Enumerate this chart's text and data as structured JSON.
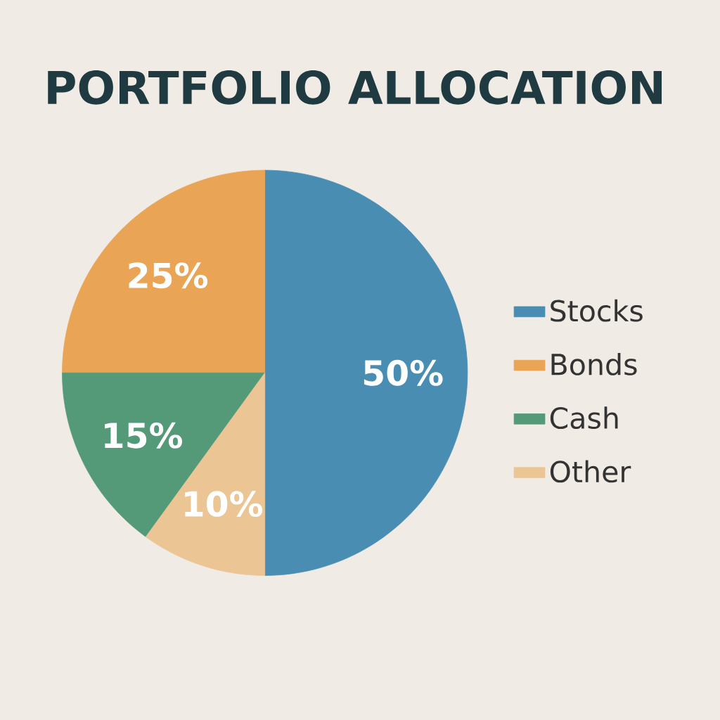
{
  "chart_data": {
    "type": "pie",
    "title": "PORTFOLIO ALLOCATION",
    "categories": [
      "Stocks",
      "Bonds",
      "Cash",
      "Other"
    ],
    "values": [
      50,
      25,
      15,
      10
    ],
    "colors": [
      "#4a8db3",
      "#e9a555",
      "#559a78",
      "#ecc594"
    ],
    "value_labels": [
      "50%",
      "25%",
      "15%",
      "10%"
    ],
    "legend": "right"
  }
}
